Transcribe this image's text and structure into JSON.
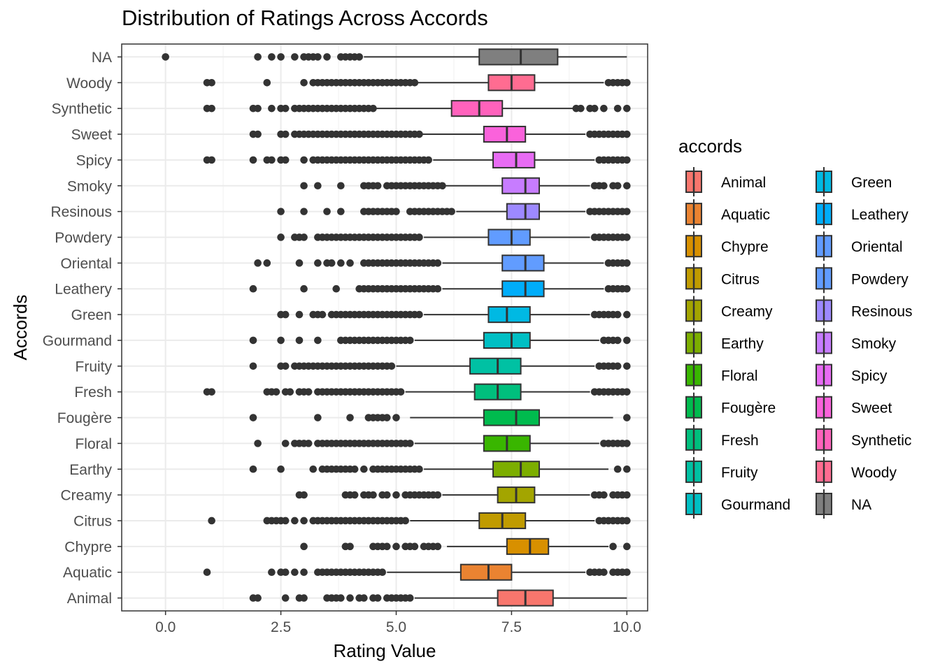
{
  "chart_data": {
    "type": "boxplot",
    "orientation": "horizontal",
    "title": "Distribution of Ratings Across Accords",
    "xlabel": "Rating Value",
    "ylabel": "Accords",
    "xlim": [
      -0.95,
      10.45
    ],
    "x_ticks": [
      0,
      2.5,
      5,
      7.5,
      10
    ],
    "x_tick_labels": [
      "0.0",
      "2.5",
      "5.0",
      "7.5",
      "10.0"
    ],
    "grid": true,
    "legend": {
      "title": "accords",
      "placement": "right",
      "columns": 2,
      "entries": [
        "Animal",
        "Aquatic",
        "Chypre",
        "Citrus",
        "Creamy",
        "Earthy",
        "Floral",
        "Fougère",
        "Fresh",
        "Fruity",
        "Gourmand",
        "Green",
        "Leathery",
        "Oriental",
        "Powdery",
        "Resinous",
        "Smoky",
        "Spicy",
        "Sweet",
        "Synthetic",
        "Woody",
        "NA"
      ]
    },
    "categories": [
      "Animal",
      "Aquatic",
      "Chypre",
      "Citrus",
      "Creamy",
      "Earthy",
      "Floral",
      "Fougère",
      "Fresh",
      "Fruity",
      "Gourmand",
      "Green",
      "Leathery",
      "Oriental",
      "Powdery",
      "Resinous",
      "Smoky",
      "Spicy",
      "Sweet",
      "Synthetic",
      "Woody",
      "NA"
    ],
    "series": [
      {
        "name": "Animal",
        "color": "#F8766D",
        "whisker_low": 5.4,
        "q1": 7.2,
        "median": 7.8,
        "q3": 8.4,
        "whisker_high": 10.0,
        "outliers": [
          1.9,
          2.0,
          2.6,
          2.9,
          3.0,
          3.5,
          3.6,
          3.7,
          3.8,
          4.0,
          4.2,
          4.3,
          4.5,
          4.6,
          4.8,
          4.9,
          5.0,
          5.1,
          5.2,
          5.3
        ]
      },
      {
        "name": "Aquatic",
        "color": "#EA8331",
        "whisker_low": 4.8,
        "q1": 6.4,
        "median": 7.0,
        "q3": 7.5,
        "whisker_high": 9.1,
        "outliers": [
          0.9,
          2.3,
          2.5,
          2.6,
          2.8,
          3.0,
          3.3,
          3.4,
          3.5,
          3.6,
          3.7,
          3.8,
          3.9,
          4.0,
          4.1,
          4.2,
          4.3,
          4.4,
          4.5,
          4.6,
          4.7,
          9.2,
          9.3,
          9.4,
          9.5,
          9.7,
          9.8,
          9.9,
          10.0
        ]
      },
      {
        "name": "Chypre",
        "color": "#D89000",
        "whisker_low": 6.1,
        "q1": 7.4,
        "median": 7.9,
        "q3": 8.3,
        "whisker_high": 9.6,
        "outliers": [
          3.0,
          3.9,
          4.0,
          4.5,
          4.6,
          4.7,
          4.8,
          5.0,
          5.2,
          5.3,
          5.4,
          5.6,
          5.7,
          5.8,
          5.9,
          9.7,
          10.0
        ]
      },
      {
        "name": "Citrus",
        "color": "#C09B00",
        "whisker_low": 5.3,
        "q1": 6.8,
        "median": 7.3,
        "q3": 7.8,
        "whisker_high": 9.3,
        "outliers": [
          1.0,
          2.2,
          2.3,
          2.4,
          2.5,
          2.6,
          2.8,
          3.0,
          3.2,
          3.3,
          3.4,
          3.5,
          3.6,
          3.7,
          3.8,
          3.9,
          4.0,
          4.1,
          4.2,
          4.3,
          4.4,
          4.5,
          4.6,
          4.7,
          4.8,
          4.9,
          5.0,
          5.1,
          5.2,
          9.4,
          9.5,
          9.6,
          9.7,
          9.8,
          9.9,
          10.0
        ]
      },
      {
        "name": "Creamy",
        "color": "#A3A500",
        "whisker_low": 6.0,
        "q1": 7.2,
        "median": 7.6,
        "q3": 8.0,
        "whisker_high": 9.2,
        "outliers": [
          2.9,
          3.0,
          3.9,
          4.0,
          4.1,
          4.3,
          4.4,
          4.5,
          4.7,
          4.8,
          5.0,
          5.2,
          5.3,
          5.4,
          5.5,
          5.6,
          5.7,
          5.8,
          5.9,
          9.3,
          9.4,
          9.5,
          9.7,
          9.8,
          9.9,
          10.0
        ]
      },
      {
        "name": "Earthy",
        "color": "#7CAE00",
        "whisker_low": 5.6,
        "q1": 7.1,
        "median": 7.7,
        "q3": 8.1,
        "whisker_high": 9.6,
        "outliers": [
          1.9,
          2.5,
          3.2,
          3.4,
          3.5,
          3.6,
          3.7,
          3.8,
          3.9,
          4.0,
          4.1,
          4.3,
          4.5,
          4.6,
          4.7,
          4.8,
          4.9,
          5.0,
          5.1,
          5.2,
          5.3,
          5.4,
          5.5,
          9.8,
          10.0
        ]
      },
      {
        "name": "Floral",
        "color": "#39B600",
        "whisker_low": 5.4,
        "q1": 6.9,
        "median": 7.4,
        "q3": 7.9,
        "whisker_high": 9.4,
        "outliers": [
          2.0,
          2.6,
          2.8,
          2.9,
          3.0,
          3.1,
          3.3,
          3.4,
          3.5,
          3.6,
          3.7,
          3.8,
          3.9,
          4.0,
          4.1,
          4.2,
          4.3,
          4.4,
          4.5,
          4.6,
          4.7,
          4.8,
          4.9,
          5.0,
          5.1,
          5.2,
          5.3,
          9.5,
          9.6,
          9.7,
          9.8,
          9.9,
          10.0
        ]
      },
      {
        "name": "Fougère",
        "color": "#00BB4E",
        "whisker_low": 5.3,
        "q1": 6.9,
        "median": 7.6,
        "q3": 8.1,
        "whisker_high": 9.7,
        "outliers": [
          1.9,
          3.3,
          4.0,
          4.4,
          4.5,
          4.6,
          4.7,
          4.8,
          5.0,
          10.0
        ]
      },
      {
        "name": "Fresh",
        "color": "#00BF7D",
        "whisker_low": 5.2,
        "q1": 6.7,
        "median": 7.2,
        "q3": 7.7,
        "whisker_high": 9.2,
        "outliers": [
          0.9,
          1.0,
          2.2,
          2.3,
          2.4,
          2.6,
          2.7,
          2.9,
          3.0,
          3.1,
          3.3,
          3.4,
          3.5,
          3.6,
          3.7,
          3.8,
          3.9,
          4.0,
          4.1,
          4.2,
          4.3,
          4.4,
          4.5,
          4.6,
          4.7,
          4.8,
          4.9,
          5.0,
          5.1,
          9.3,
          9.4,
          9.5,
          9.6,
          9.7,
          9.8,
          9.9,
          10.0
        ]
      },
      {
        "name": "Fruity",
        "color": "#00C1A3",
        "whisker_low": 5.0,
        "q1": 6.6,
        "median": 7.2,
        "q3": 7.7,
        "whisker_high": 9.3,
        "outliers": [
          1.9,
          2.5,
          2.6,
          2.8,
          2.9,
          3.0,
          3.1,
          3.2,
          3.3,
          3.4,
          3.5,
          3.6,
          3.7,
          3.8,
          3.9,
          4.0,
          4.1,
          4.2,
          4.3,
          4.4,
          4.5,
          4.6,
          4.7,
          4.8,
          4.9,
          9.4,
          9.5,
          9.6,
          9.7,
          9.8,
          10.0
        ]
      },
      {
        "name": "Gourmand",
        "color": "#00BFC4",
        "whisker_low": 5.4,
        "q1": 6.9,
        "median": 7.5,
        "q3": 7.9,
        "whisker_high": 9.4,
        "outliers": [
          1.9,
          2.5,
          2.9,
          3.3,
          3.8,
          3.9,
          4.0,
          4.1,
          4.2,
          4.3,
          4.4,
          4.5,
          4.6,
          4.7,
          4.8,
          4.9,
          5.0,
          5.1,
          5.2,
          5.3,
          9.5,
          9.6,
          9.7,
          9.8,
          10.0
        ]
      },
      {
        "name": "Green",
        "color": "#00B9E3",
        "whisker_low": 5.6,
        "q1": 7.0,
        "median": 7.4,
        "q3": 7.9,
        "whisker_high": 9.2,
        "outliers": [
          2.5,
          2.6,
          2.9,
          3.2,
          3.3,
          3.4,
          3.6,
          3.7,
          3.8,
          3.9,
          4.0,
          4.1,
          4.2,
          4.3,
          4.4,
          4.5,
          4.6,
          4.7,
          4.8,
          4.9,
          5.0,
          5.1,
          5.2,
          5.3,
          5.4,
          5.5,
          9.3,
          9.4,
          9.5,
          9.6,
          9.7,
          9.8,
          10.0
        ]
      },
      {
        "name": "Leathery",
        "color": "#00ADFA",
        "whisker_low": 6.0,
        "q1": 7.3,
        "median": 7.8,
        "q3": 8.2,
        "whisker_high": 9.5,
        "outliers": [
          1.9,
          3.0,
          3.7,
          4.2,
          4.3,
          4.4,
          4.5,
          4.6,
          4.7,
          4.8,
          4.9,
          5.0,
          5.1,
          5.2,
          5.3,
          5.4,
          5.5,
          5.6,
          5.7,
          5.8,
          5.9,
          9.6,
          9.7,
          9.8,
          9.9,
          10.0
        ]
      },
      {
        "name": "Oriental",
        "color": "#619CFF",
        "whisker_low": 6.0,
        "q1": 7.3,
        "median": 7.8,
        "q3": 8.2,
        "whisker_high": 9.5,
        "outliers": [
          2.0,
          2.2,
          2.9,
          3.3,
          3.5,
          3.6,
          3.8,
          4.0,
          4.3,
          4.4,
          4.5,
          4.6,
          4.7,
          4.8,
          4.9,
          5.0,
          5.1,
          5.2,
          5.3,
          5.4,
          5.5,
          5.6,
          5.7,
          5.8,
          5.9,
          9.6,
          9.7,
          9.8,
          9.9,
          10.0
        ]
      },
      {
        "name": "Powdery",
        "color": "#619CFF",
        "whisker_low": 5.6,
        "q1": 7.0,
        "median": 7.5,
        "q3": 7.9,
        "whisker_high": 9.2,
        "outliers": [
          2.5,
          2.8,
          2.9,
          3.0,
          3.3,
          3.4,
          3.5,
          3.6,
          3.7,
          3.8,
          3.9,
          4.0,
          4.1,
          4.2,
          4.3,
          4.4,
          4.5,
          4.6,
          4.7,
          4.8,
          4.9,
          5.0,
          5.1,
          5.2,
          5.3,
          5.4,
          5.5,
          9.3,
          9.4,
          9.5,
          9.6,
          9.7,
          9.8,
          9.9,
          10.0
        ]
      },
      {
        "name": "Resinous",
        "color": "#9D89FF",
        "whisker_low": 6.3,
        "q1": 7.4,
        "median": 7.8,
        "q3": 8.1,
        "whisker_high": 9.1,
        "outliers": [
          2.5,
          3.0,
          3.5,
          3.8,
          4.3,
          4.4,
          4.5,
          4.6,
          4.7,
          4.8,
          4.9,
          5.0,
          5.3,
          5.4,
          5.5,
          5.6,
          5.7,
          5.8,
          5.9,
          6.0,
          6.1,
          6.2,
          9.2,
          9.3,
          9.4,
          9.5,
          9.6,
          9.7,
          9.8,
          9.9,
          10.0
        ]
      },
      {
        "name": "Smoky",
        "color": "#C77CFF",
        "whisker_low": 6.0,
        "q1": 7.3,
        "median": 7.8,
        "q3": 8.1,
        "whisker_high": 9.2,
        "outliers": [
          3.0,
          3.3,
          3.8,
          4.3,
          4.4,
          4.5,
          4.6,
          4.8,
          4.9,
          5.0,
          5.1,
          5.2,
          5.3,
          5.4,
          5.5,
          5.6,
          5.7,
          5.8,
          5.9,
          6.0,
          9.3,
          9.4,
          9.5,
          9.7,
          9.8,
          10.0
        ]
      },
      {
        "name": "Spicy",
        "color": "#E76BF3",
        "whisker_low": 5.8,
        "q1": 7.1,
        "median": 7.6,
        "q3": 8.0,
        "whisker_high": 9.3,
        "outliers": [
          0.9,
          1.0,
          1.9,
          2.2,
          2.3,
          2.5,
          2.6,
          3.0,
          3.2,
          3.3,
          3.4,
          3.5,
          3.6,
          3.7,
          3.8,
          3.9,
          4.0,
          4.1,
          4.2,
          4.3,
          4.4,
          4.5,
          4.6,
          4.7,
          4.8,
          4.9,
          5.0,
          5.1,
          5.2,
          5.3,
          5.4,
          5.5,
          5.6,
          5.7,
          9.4,
          9.5,
          9.6,
          9.7,
          9.8,
          9.9,
          10.0
        ]
      },
      {
        "name": "Sweet",
        "color": "#FA62DB",
        "whisker_low": 5.5,
        "q1": 6.9,
        "median": 7.4,
        "q3": 7.8,
        "whisker_high": 9.1,
        "outliers": [
          1.9,
          2.0,
          2.5,
          2.6,
          2.8,
          2.9,
          3.0,
          3.1,
          3.2,
          3.3,
          3.4,
          3.5,
          3.6,
          3.7,
          3.8,
          3.9,
          4.0,
          4.1,
          4.2,
          4.3,
          4.4,
          4.5,
          4.6,
          4.7,
          4.8,
          4.9,
          5.0,
          5.1,
          5.2,
          5.3,
          5.4,
          5.5,
          9.2,
          9.3,
          9.4,
          9.5,
          9.6,
          9.7,
          9.8,
          9.9,
          10.0
        ]
      },
      {
        "name": "Synthetic",
        "color": "#FF62BC",
        "whisker_low": 4.5,
        "q1": 6.2,
        "median": 6.8,
        "q3": 7.3,
        "whisker_high": 8.9,
        "outliers": [
          0.9,
          1.0,
          1.9,
          2.0,
          2.3,
          2.5,
          2.6,
          2.8,
          2.9,
          3.0,
          3.1,
          3.2,
          3.3,
          3.4,
          3.5,
          3.6,
          3.7,
          3.8,
          3.9,
          4.0,
          4.1,
          4.2,
          4.3,
          4.4,
          4.5,
          8.9,
          9.0,
          9.2,
          9.3,
          9.5,
          9.8,
          10.0
        ]
      },
      {
        "name": "Woody",
        "color": "#FF6C91",
        "whisker_low": 5.4,
        "q1": 7.0,
        "median": 7.5,
        "q3": 8.0,
        "whisker_high": 9.5,
        "outliers": [
          0.9,
          1.0,
          2.2,
          3.0,
          3.2,
          3.3,
          3.4,
          3.5,
          3.6,
          3.7,
          3.8,
          3.9,
          4.0,
          4.1,
          4.2,
          4.3,
          4.4,
          4.5,
          4.6,
          4.7,
          4.8,
          4.9,
          5.0,
          5.1,
          5.2,
          5.3,
          5.4,
          9.6,
          9.7,
          9.8,
          9.9,
          10.0
        ]
      },
      {
        "name": "NA",
        "color": "#7F7F7F",
        "whisker_low": 4.3,
        "q1": 6.8,
        "median": 7.7,
        "q3": 8.5,
        "whisker_high": 10.0,
        "outliers": [
          0.0,
          2.0,
          2.3,
          2.5,
          2.8,
          3.0,
          3.1,
          3.2,
          3.3,
          3.5,
          3.8,
          3.9,
          4.0,
          4.1,
          4.2
        ]
      }
    ]
  }
}
